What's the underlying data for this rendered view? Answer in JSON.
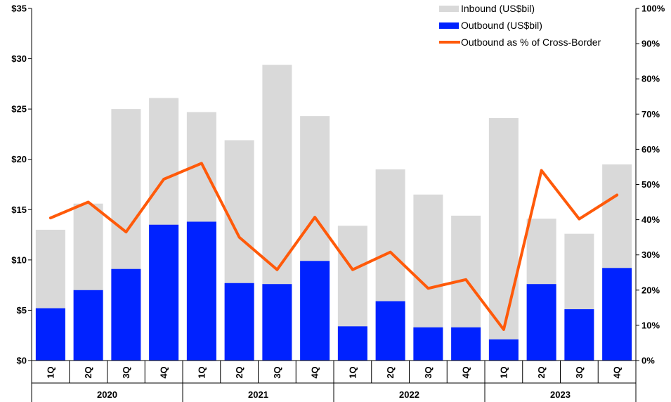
{
  "chart_data": {
    "type": "bar",
    "categories": [
      "1Q",
      "2Q",
      "3Q",
      "4Q",
      "1Q",
      "2Q",
      "3Q",
      "4Q",
      "1Q",
      "2Q",
      "3Q",
      "4Q",
      "1Q",
      "2Q",
      "3Q",
      "4Q"
    ],
    "years": [
      "2020",
      "2021",
      "2022",
      "2023"
    ],
    "series": [
      {
        "name": "Inbound (US$bil)",
        "kind": "bar-total",
        "color": "#d9d9d9",
        "values": [
          13.0,
          15.6,
          25.0,
          26.1,
          24.7,
          21.9,
          29.4,
          24.3,
          13.4,
          19.0,
          16.5,
          14.4,
          24.1,
          14.1,
          12.6,
          19.5
        ]
      },
      {
        "name": "Outbound (US$bil)",
        "kind": "bar",
        "color": "#0022ff",
        "values": [
          5.2,
          7.0,
          9.1,
          13.5,
          13.8,
          7.7,
          7.6,
          9.9,
          3.4,
          5.9,
          3.3,
          3.3,
          2.1,
          7.6,
          5.1,
          9.2
        ]
      },
      {
        "name": "Outbound as % of Cross-Border",
        "kind": "line",
        "axis": "right",
        "color": "#ff5a0a",
        "values": [
          40.5,
          45,
          36.5,
          51.5,
          56,
          35,
          25.8,
          40.7,
          25.8,
          30.8,
          20.5,
          23,
          8.8,
          54,
          40.2,
          47
        ]
      }
    ],
    "y_left": {
      "ticks": [
        "$0",
        "$5",
        "$10",
        "$15",
        "$20",
        "$25",
        "$30",
        "$35"
      ],
      "ylim": [
        0,
        35
      ]
    },
    "y_right": {
      "ticks": [
        "0%",
        "10%",
        "20%",
        "30%",
        "40%",
        "50%",
        "60%",
        "70%",
        "80%",
        "90%",
        "100%"
      ],
      "ylim": [
        0,
        100
      ]
    },
    "legend_position": "top-right",
    "grid": false
  }
}
